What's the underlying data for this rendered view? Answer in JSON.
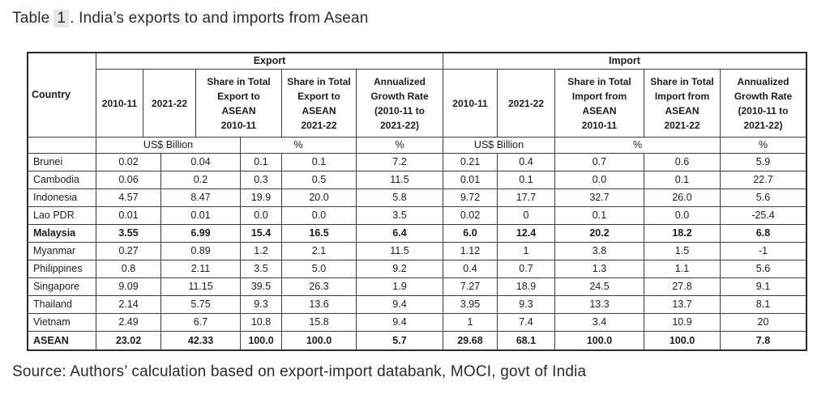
{
  "title": {
    "word": "Table",
    "number": "1",
    "rest": ". India’s exports to and imports from Asean"
  },
  "source": "Source: Authors’ calculation based on export-import databank, MOCI, govt of India",
  "table": {
    "country_header": "Country",
    "groups": {
      "export": "Export",
      "import": "Import"
    },
    "columns": {
      "export": [
        "2010-11",
        "2021-22",
        "Share in Total\nExport to\nASEAN\n2010-11",
        "Share in Total\nExport to\nASEAN\n2021-22",
        "Annualized\nGrowth Rate\n(2010-11 to\n2021-22)"
      ],
      "import": [
        "2010-11",
        "2021-22",
        "Share in Total\nImport from\nASEAN\n2010-11",
        "Share in Total\nImport from\nASEAN\n2021-22",
        "Annualized\nGrowth Rate\n(2010-11 to\n2021-22)"
      ]
    },
    "units": {
      "export": [
        "US$ Billion",
        "%",
        "%"
      ],
      "import": [
        "US$ Billion",
        "%",
        "%"
      ]
    },
    "rows": [
      {
        "country": "Brunei",
        "bold": false,
        "export": [
          "0.02",
          "0.04",
          "0.1",
          "0.1",
          "7.2"
        ],
        "import": [
          "0.21",
          "0.4",
          "0.7",
          "0.6",
          "5.9"
        ]
      },
      {
        "country": "Cambodia",
        "bold": false,
        "export": [
          "0.06",
          "0.2",
          "0.3",
          "0.5",
          "11.5"
        ],
        "import": [
          "0.01",
          "0.1",
          "0.0",
          "0.1",
          "22.7"
        ]
      },
      {
        "country": "Indonesia",
        "bold": false,
        "export": [
          "4.57",
          "8.47",
          "19.9",
          "20.0",
          "5.8"
        ],
        "import": [
          "9.72",
          "17.7",
          "32.7",
          "26.0",
          "5.6"
        ]
      },
      {
        "country": "Lao PDR",
        "bold": false,
        "export": [
          "0.01",
          "0.01",
          "0.0",
          "0.0",
          "3.5"
        ],
        "import": [
          "0.02",
          "0",
          "0.1",
          "0.0",
          "-25.4"
        ]
      },
      {
        "country": "Malaysia",
        "bold": true,
        "export": [
          "3.55",
          "6.99",
          "15.4",
          "16.5",
          "6.4"
        ],
        "import": [
          "6.0",
          "12.4",
          "20.2",
          "18.2",
          "6.8"
        ]
      },
      {
        "country": "Myanmar",
        "bold": false,
        "export": [
          "0.27",
          "0.89",
          "1.2",
          "2.1",
          "11.5"
        ],
        "import": [
          "1.12",
          "1",
          "3.8",
          "1.5",
          "-1"
        ]
      },
      {
        "country": "Philippines",
        "bold": false,
        "export": [
          "0.8",
          "2.11",
          "3.5",
          "5.0",
          "9.2"
        ],
        "import": [
          "0.4",
          "0.7",
          "1.3",
          "1.1",
          "5.6"
        ]
      },
      {
        "country": "Singapore",
        "bold": false,
        "export": [
          "9.09",
          "11.15",
          "39.5",
          "26.3",
          "1.9"
        ],
        "import": [
          "7.27",
          "18.9",
          "24.5",
          "27.8",
          "9.1"
        ]
      },
      {
        "country": "Thailand",
        "bold": false,
        "export": [
          "2.14",
          "5.75",
          "9.3",
          "13.6",
          "9.4"
        ],
        "import": [
          "3.95",
          "9.3",
          "13.3",
          "13.7",
          "8.1"
        ]
      },
      {
        "country": "Vietnam",
        "bold": false,
        "export": [
          "2.49",
          "6.7",
          "10.8",
          "15.8",
          "9.4"
        ],
        "import": [
          "1",
          "7.4",
          "3.4",
          "10.9",
          "20"
        ]
      },
      {
        "country": "ASEAN",
        "bold": true,
        "export": [
          "23.02",
          "42.33",
          "100.0",
          "100.0",
          "5.7"
        ],
        "import": [
          "29.68",
          "68.1",
          "100.0",
          "100.0",
          "7.8"
        ]
      }
    ]
  }
}
